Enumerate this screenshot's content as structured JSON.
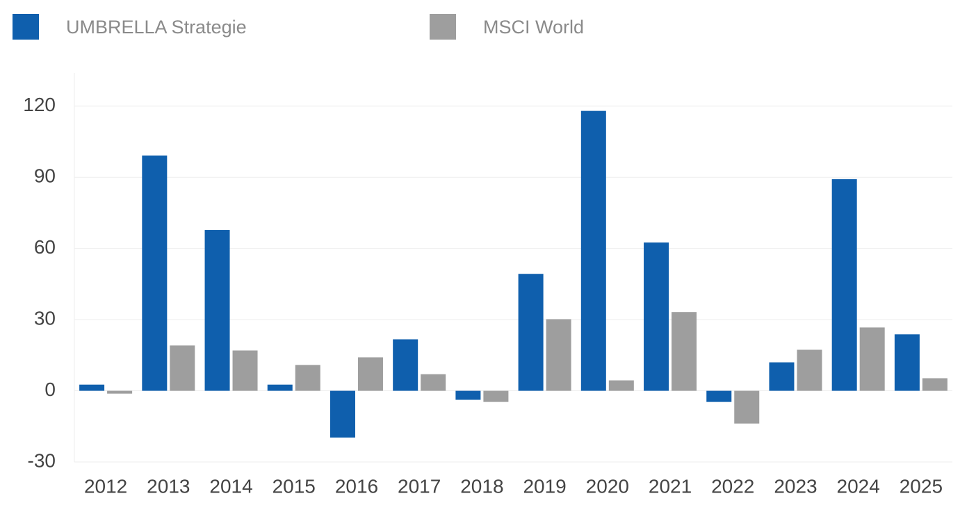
{
  "chart_data": {
    "type": "bar",
    "categories": [
      "2012",
      "2013",
      "2014",
      "2015",
      "2016",
      "2017",
      "2018",
      "2019",
      "2020",
      "2021",
      "2022",
      "2023",
      "2024",
      "2025"
    ],
    "series": [
      {
        "name": "UMBRELLA Strategie",
        "color": "#0f5fad",
        "values": [
          2.6,
          99.2,
          67.8,
          2.6,
          -19.7,
          21.7,
          -3.8,
          49.3,
          118,
          62.5,
          -4.7,
          12,
          89.2,
          23.8
        ]
      },
      {
        "name": "MSCI World",
        "color": "#9e9e9e",
        "values": [
          -1.2,
          19.1,
          17,
          10.9,
          14.1,
          7,
          -4.7,
          30.2,
          4.4,
          33.2,
          -13.8,
          17.3,
          26.7,
          5.3
        ]
      }
    ],
    "ylim": [
      -30,
      134
    ],
    "yticks": [
      -30,
      0,
      30,
      60,
      90,
      120
    ],
    "grid": true
  }
}
